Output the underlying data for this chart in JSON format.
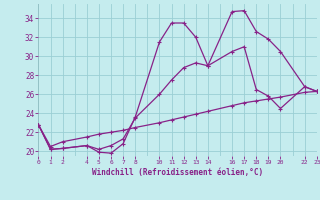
{
  "xlabel": "Windchill (Refroidissement éolien,°C)",
  "bg_color": "#c5ecee",
  "line_color": "#882288",
  "grid_color": "#9acfd4",
  "xlim": [
    0,
    23
  ],
  "ylim": [
    19.5,
    35.5
  ],
  "yticks": [
    20,
    22,
    24,
    26,
    28,
    30,
    32,
    34
  ],
  "xtick_positions": [
    0,
    1,
    2,
    4,
    5,
    6,
    7,
    8,
    10,
    11,
    12,
    13,
    14,
    16,
    17,
    18,
    19,
    20,
    22,
    23
  ],
  "xtick_labels": [
    "0",
    "1",
    "2",
    "4",
    "5",
    "6",
    "7",
    "8",
    "10",
    "11",
    "12",
    "13",
    "14",
    "16",
    "17",
    "18",
    "19",
    "20",
    "22",
    "23"
  ],
  "curve1_x": [
    0,
    1,
    2,
    4,
    5,
    6,
    7,
    8,
    10,
    11,
    12,
    13,
    14,
    16,
    17,
    18,
    19,
    20,
    22,
    23
  ],
  "curve1_y": [
    22.8,
    20.2,
    20.3,
    20.6,
    19.9,
    19.8,
    20.8,
    23.6,
    31.5,
    33.5,
    33.5,
    32.0,
    29.0,
    34.7,
    34.8,
    32.6,
    31.8,
    30.5,
    26.8,
    26.3
  ],
  "curve2_x": [
    0,
    1,
    2,
    4,
    5,
    6,
    7,
    8,
    10,
    11,
    12,
    13,
    14,
    16,
    17,
    18,
    19,
    20,
    22,
    23
  ],
  "curve2_y": [
    22.8,
    20.2,
    20.3,
    20.6,
    20.2,
    20.6,
    21.3,
    23.5,
    26.0,
    27.5,
    28.8,
    29.3,
    29.0,
    30.5,
    31.0,
    26.5,
    25.8,
    24.5,
    26.8,
    26.3
  ],
  "curve3_x": [
    0,
    1,
    2,
    4,
    5,
    6,
    7,
    8,
    10,
    11,
    12,
    13,
    14,
    16,
    17,
    18,
    19,
    20,
    22,
    23
  ],
  "curve3_y": [
    22.8,
    20.5,
    21.0,
    21.5,
    21.8,
    22.0,
    22.2,
    22.5,
    23.0,
    23.3,
    23.6,
    23.9,
    24.2,
    24.8,
    25.1,
    25.3,
    25.5,
    25.7,
    26.2,
    26.3
  ]
}
